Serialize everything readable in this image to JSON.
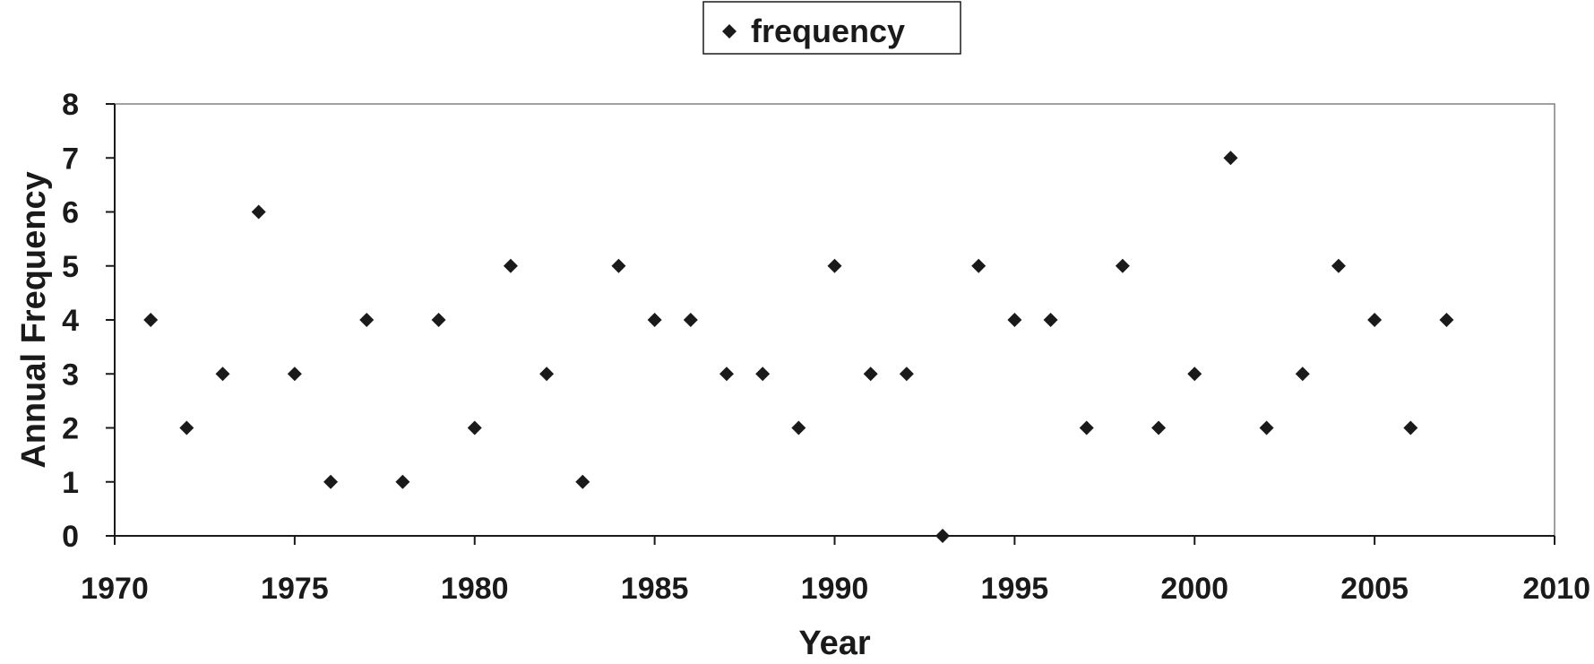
{
  "chart_data": {
    "type": "scatter",
    "title": "",
    "xlabel": "Year",
    "ylabel": "Annual Frequency",
    "xlim": [
      1970,
      2010
    ],
    "ylim": [
      0,
      8
    ],
    "xticks": [
      "1970",
      "1975",
      "1980",
      "1985",
      "1990",
      "1995",
      "2000",
      "2005",
      "2010"
    ],
    "yticks": [
      "0",
      "1",
      "2",
      "3",
      "4",
      "5",
      "6",
      "7",
      "8"
    ],
    "grid": false,
    "legend": {
      "position": "top-center",
      "entries": [
        "frequency"
      ]
    },
    "marker_color": "#1a1a1a",
    "series": [
      {
        "name": "frequency",
        "x": [
          1971,
          1972,
          1973,
          1974,
          1975,
          1976,
          1977,
          1978,
          1979,
          1980,
          1981,
          1982,
          1983,
          1984,
          1985,
          1986,
          1987,
          1988,
          1989,
          1990,
          1991,
          1992,
          1993,
          1994,
          1995,
          1996,
          1997,
          1998,
          1999,
          2000,
          2001,
          2002,
          2003,
          2004,
          2005,
          2006,
          2007
        ],
        "y": [
          4,
          2,
          3,
          6,
          3,
          1,
          4,
          1,
          4,
          2,
          5,
          3,
          1,
          5,
          4,
          4,
          3,
          3,
          2,
          5,
          3,
          3,
          0,
          5,
          4,
          4,
          2,
          5,
          2,
          3,
          7,
          2,
          3,
          5,
          4,
          2,
          4
        ]
      }
    ]
  }
}
